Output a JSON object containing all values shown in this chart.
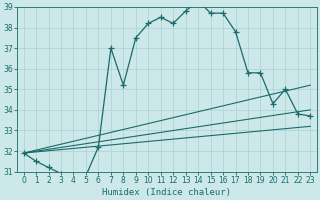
{
  "xlabel": "Humidex (Indice chaleur)",
  "bg_color": "#cce8e8",
  "grid_color": "#b0d4d4",
  "line_color": "#1a6b6b",
  "xlim": [
    -0.5,
    23.5
  ],
  "ylim": [
    31,
    39
  ],
  "yticks": [
    31,
    32,
    33,
    34,
    35,
    36,
    37,
    38,
    39
  ],
  "xticks": [
    0,
    1,
    2,
    3,
    4,
    5,
    6,
    7,
    8,
    9,
    10,
    11,
    12,
    13,
    14,
    15,
    16,
    17,
    18,
    19,
    20,
    21,
    22,
    23
  ],
  "main_x": [
    0,
    1,
    2,
    3,
    4,
    5,
    6,
    7,
    8,
    9,
    10,
    11,
    12,
    13,
    14,
    15,
    16,
    17,
    18,
    19,
    20,
    21,
    22,
    23
  ],
  "main_y": [
    31.9,
    31.5,
    31.2,
    30.9,
    30.8,
    30.8,
    32.2,
    37.0,
    35.2,
    37.5,
    38.2,
    38.5,
    38.2,
    38.8,
    39.3,
    38.7,
    38.7,
    37.8,
    35.8,
    35.8,
    34.3,
    35.0,
    33.8,
    33.7
  ],
  "ref_lines": [
    {
      "x0": 0,
      "y0": 31.9,
      "x1": 23,
      "y1": 35.2
    },
    {
      "x0": 0,
      "y0": 31.9,
      "x1": 23,
      "y1": 34.0
    },
    {
      "x0": 0,
      "y0": 31.9,
      "x1": 23,
      "y1": 33.2
    }
  ],
  "figsize": [
    3.2,
    2.0
  ],
  "dpi": 100
}
